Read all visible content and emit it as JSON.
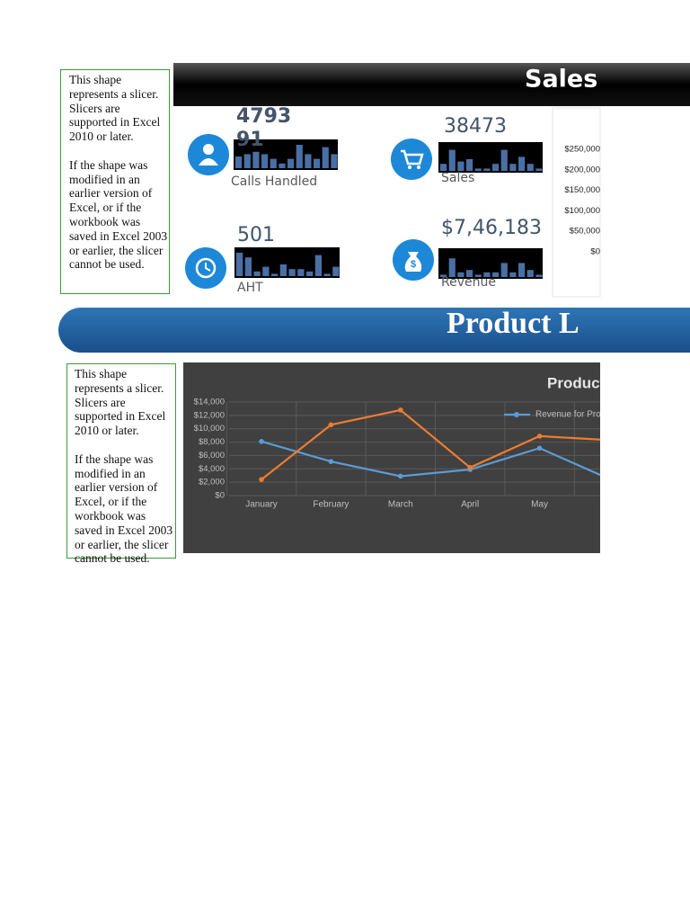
{
  "slicers": [
    {
      "paragraphs": [
        "This shape represents a slicer. Slicers are supported in Excel 2010 or later.",
        "If the shape was modified in an earlier version of Excel, or if the workbook was saved in Excel 2003 or earlier, the slicer cannot be used."
      ]
    },
    {
      "paragraphs": [
        "This shape represents a slicer. Slicers are supported in Excel 2010 or later.",
        "If the shape was modified in an earlier version of Excel, or if the workbook was saved in Excel 2003 or earlier, the slicer cannot be used."
      ]
    }
  ],
  "header": {
    "title": "Sales I"
  },
  "kpis": [
    {
      "value": "479391",
      "label": "Calls Handled",
      "spark": {
        "values": [
          5,
          6,
          7,
          6,
          4,
          2,
          4,
          10,
          6,
          4,
          9,
          6
        ],
        "ylim": [
          0,
          10
        ]
      }
    },
    {
      "value": "38473",
      "label": "Sales",
      "spark": {
        "values": [
          3,
          9,
          4,
          5,
          1,
          1,
          3,
          9,
          3,
          6,
          3,
          1
        ],
        "ylim": [
          0,
          10
        ]
      }
    },
    {
      "value": "501",
      "label": "AHT",
      "spark": {
        "values": [
          10,
          8,
          2,
          4,
          1,
          5,
          3,
          3,
          2,
          9,
          1,
          4
        ],
        "ylim": [
          0,
          10
        ]
      }
    },
    {
      "value": "$7,46,183",
      "label": "Revenue",
      "spark": {
        "values": [
          1,
          8,
          2,
          3,
          1,
          2,
          2,
          6,
          2,
          6,
          3,
          1
        ],
        "ylim": [
          0,
          10
        ]
      }
    }
  ],
  "banner": {
    "title": "Product L"
  },
  "chart_data": [
    {
      "type": "bar",
      "ylim": [
        0,
        250000
      ],
      "yticks": [
        {
          "value": 250000,
          "label": "$250,000"
        },
        {
          "value": 200000,
          "label": "$200,000"
        },
        {
          "value": 150000,
          "label": "$150,000"
        },
        {
          "value": 100000,
          "label": "$100,000"
        },
        {
          "value": 50000,
          "label": "$50,000"
        },
        {
          "value": 0,
          "label": "$0"
        }
      ]
    },
    {
      "type": "line",
      "title": "Product",
      "categories": [
        "January",
        "February",
        "March",
        "April",
        "May",
        null
      ],
      "series": [
        {
          "name": "Revenue for Pro",
          "color": "#5b9bd5",
          "values": [
            8100,
            5100,
            2900,
            3900,
            7100,
            2500
          ]
        },
        {
          "color": "#ed7d31",
          "values": [
            2400,
            10600,
            12800,
            4200,
            8900,
            8300
          ]
        }
      ],
      "ylim": [
        0,
        14000
      ],
      "yticks": [
        {
          "value": 0,
          "label": "$0"
        },
        {
          "value": 2000,
          "label": "$2,000"
        },
        {
          "value": 4000,
          "label": "$4,000"
        },
        {
          "value": 6000,
          "label": "$6,000"
        },
        {
          "value": 8000,
          "label": "$8,000"
        },
        {
          "value": 10000,
          "label": "$10,000"
        },
        {
          "value": 12000,
          "label": "$12,000"
        },
        {
          "value": 14000,
          "label": "$14,000"
        }
      ],
      "grid": true
    }
  ]
}
